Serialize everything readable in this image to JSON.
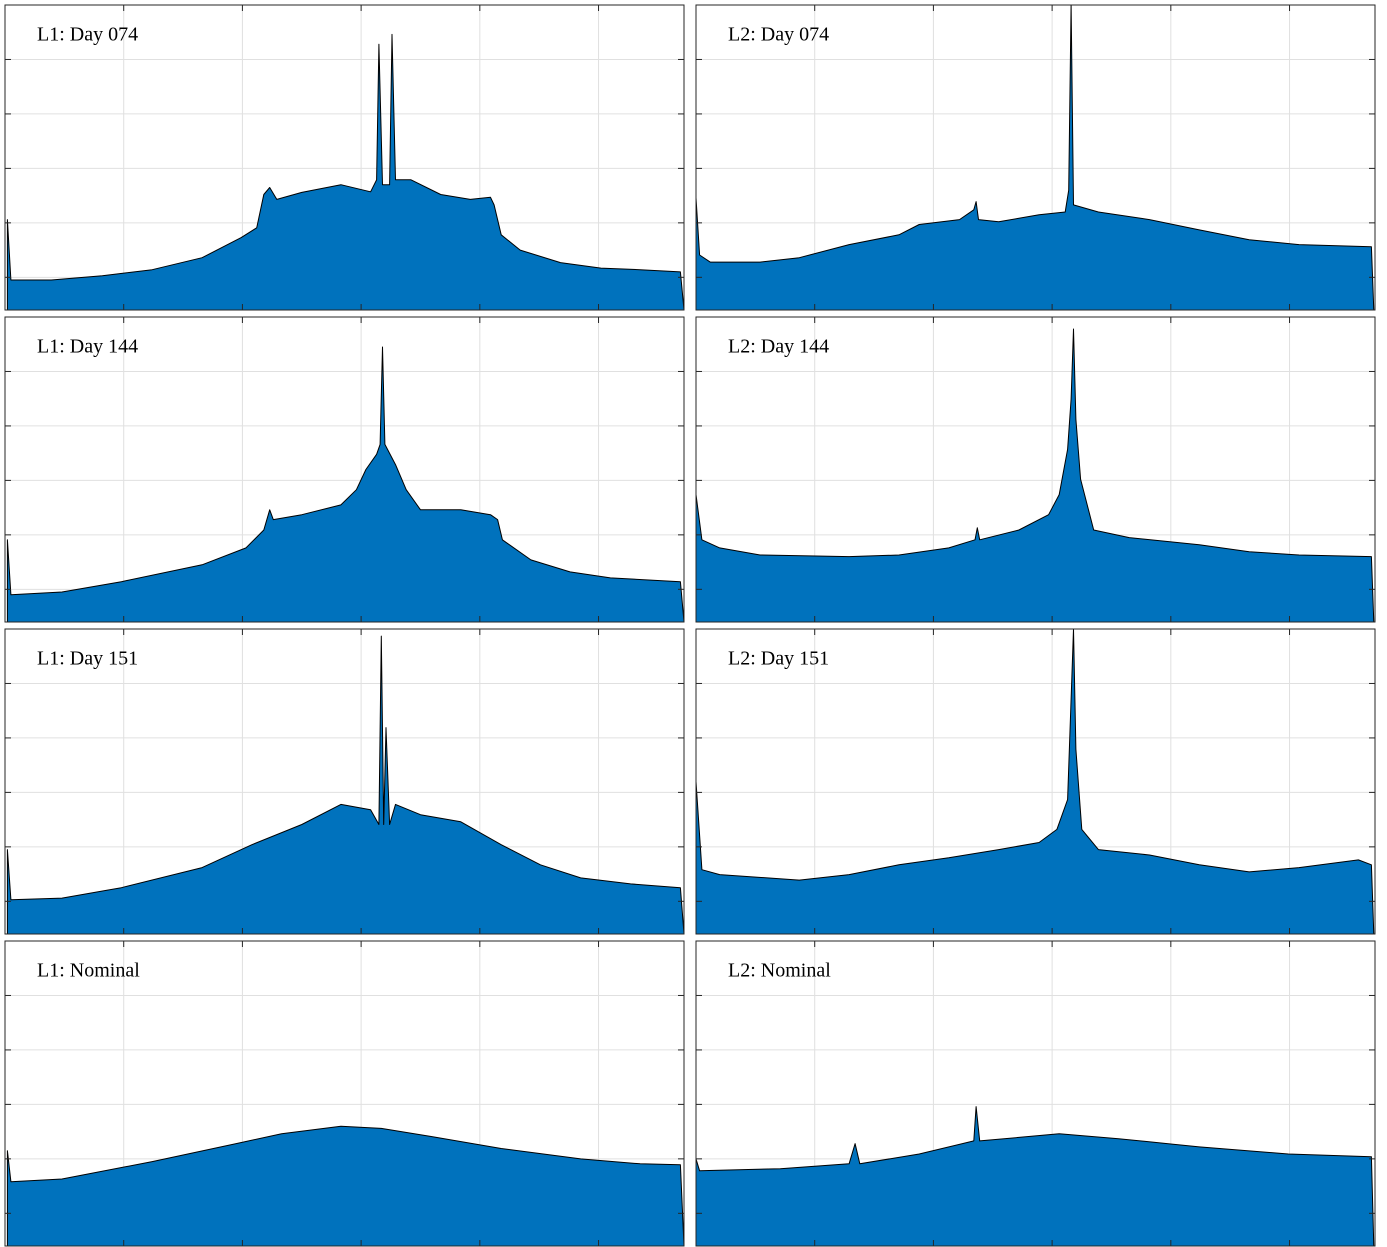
{
  "chart_data": [
    {
      "type": "area",
      "title": "L1: Day 074",
      "color": "#0072bd",
      "xlim": [
        -3,
        2.72
      ],
      "ylim": [
        0,
        5.6
      ],
      "xticks": [
        -2,
        -1,
        0,
        1,
        2
      ],
      "yticks": [
        0.6,
        1.6,
        2.6,
        3.6,
        4.6
      ],
      "grid": true,
      "x": [
        -2.98,
        -2.95,
        -2.61,
        -2.18,
        -1.76,
        -1.34,
        -1.01,
        -0.88,
        -0.82,
        -0.77,
        -0.71,
        -0.5,
        -0.17,
        0.08,
        0.13,
        0.15,
        0.18,
        0.24,
        0.26,
        0.29,
        0.42,
        0.67,
        0.92,
        1.09,
        1.12,
        1.18,
        1.34,
        1.68,
        2.02,
        2.35,
        2.69,
        2.72
      ],
      "values": [
        1.66,
        0.55,
        0.55,
        0.63,
        0.74,
        0.96,
        1.33,
        1.51,
        2.12,
        2.25,
        2.03,
        2.16,
        2.3,
        2.17,
        2.39,
        4.88,
        2.3,
        2.3,
        5.06,
        2.39,
        2.39,
        2.12,
        2.03,
        2.07,
        1.93,
        1.38,
        1.1,
        0.87,
        0.77,
        0.74,
        0.7,
        0
      ]
    },
    {
      "type": "area",
      "title": "L2: Day 074",
      "color": "#0072bd",
      "xlim": [
        -3,
        2.72
      ],
      "ylim": [
        0,
        5.6
      ],
      "xticks": [
        -2,
        -1,
        0,
        1,
        2
      ],
      "yticks": [
        0.6,
        1.6,
        2.6,
        3.6,
        4.6
      ],
      "grid": true,
      "x": [
        -3.0,
        -2.97,
        -2.88,
        -2.46,
        -2.13,
        -1.71,
        -1.29,
        -1.12,
        -0.78,
        -0.66,
        -0.64,
        -0.62,
        -0.45,
        -0.11,
        0.11,
        0.14,
        0.16,
        0.18,
        0.39,
        0.82,
        1.24,
        1.66,
        2.08,
        2.69,
        2.71
      ],
      "values": [
        2.06,
        1.01,
        0.88,
        0.88,
        0.96,
        1.2,
        1.38,
        1.57,
        1.66,
        1.84,
        1.99,
        1.66,
        1.62,
        1.75,
        1.8,
        2.2,
        5.62,
        1.93,
        1.8,
        1.66,
        1.47,
        1.29,
        1.2,
        1.16,
        0
      ]
    },
    {
      "type": "area",
      "title": "L1: Day 144",
      "color": "#0072bd",
      "xlim": [
        -3,
        2.72
      ],
      "ylim": [
        0,
        5.6
      ],
      "xticks": [
        -2,
        -1,
        0,
        1,
        2
      ],
      "yticks": [
        0.6,
        1.6,
        2.6,
        3.6,
        4.6
      ],
      "grid": true,
      "x": [
        -2.98,
        -2.95,
        -2.52,
        -2.02,
        -1.34,
        -0.97,
        -0.82,
        -0.77,
        -0.74,
        -0.5,
        -0.17,
        -0.04,
        0.04,
        0.13,
        0.16,
        0.18,
        0.2,
        0.29,
        0.38,
        0.5,
        0.84,
        1.09,
        1.15,
        1.19,
        1.43,
        1.76,
        2.1,
        2.69,
        2.72
      ],
      "values": [
        1.51,
        0.5,
        0.55,
        0.74,
        1.05,
        1.36,
        1.69,
        2.06,
        1.88,
        1.97,
        2.15,
        2.43,
        2.8,
        3.08,
        3.26,
        5.05,
        3.26,
        2.89,
        2.43,
        2.06,
        2.06,
        1.97,
        1.88,
        1.51,
        1.14,
        0.92,
        0.81,
        0.74,
        0
      ]
    },
    {
      "type": "area",
      "title": "L2: Day 144",
      "color": "#0072bd",
      "xlim": [
        -3,
        2.72
      ],
      "ylim": [
        0,
        5.6
      ],
      "xticks": [
        -2,
        -1,
        0,
        1,
        2
      ],
      "yticks": [
        0.6,
        1.6,
        2.6,
        3.6,
        4.6
      ],
      "grid": true,
      "x": [
        -3.0,
        -2.95,
        -2.8,
        -2.46,
        -1.71,
        -1.29,
        -0.87,
        -0.65,
        -0.63,
        -0.61,
        -0.28,
        -0.03,
        0.06,
        0.13,
        0.16,
        0.18,
        0.2,
        0.24,
        0.35,
        0.65,
        1.24,
        1.66,
        2.08,
        2.69,
        2.71
      ],
      "values": [
        2.34,
        1.51,
        1.36,
        1.23,
        1.2,
        1.23,
        1.36,
        1.51,
        1.73,
        1.51,
        1.69,
        1.97,
        2.34,
        3.17,
        4.09,
        5.38,
        3.72,
        2.62,
        1.69,
        1.55,
        1.42,
        1.29,
        1.23,
        1.2,
        0
      ]
    },
    {
      "type": "area",
      "title": "L1: Day 151",
      "color": "#0072bd",
      "xlim": [
        -3,
        2.72
      ],
      "ylim": [
        0,
        5.6
      ],
      "xticks": [
        -2,
        -1,
        0,
        1,
        2
      ],
      "yticks": [
        0.6,
        1.6,
        2.6,
        3.6,
        4.6
      ],
      "grid": true,
      "x": [
        -2.98,
        -2.95,
        -2.52,
        -2.02,
        -1.34,
        -0.92,
        -0.5,
        -0.17,
        0.08,
        0.15,
        0.17,
        0.19,
        0.21,
        0.24,
        0.29,
        0.5,
        0.84,
        1.18,
        1.51,
        1.85,
        2.27,
        2.69,
        2.72
      ],
      "values": [
        1.55,
        0.63,
        0.66,
        0.85,
        1.22,
        1.64,
        2.01,
        2.38,
        2.28,
        2.01,
        5.47,
        2.01,
        3.79,
        2.01,
        2.38,
        2.19,
        2.06,
        1.64,
        1.27,
        1.03,
        0.92,
        0.85,
        0
      ]
    },
    {
      "type": "area",
      "title": "L2: Day 151",
      "color": "#0072bd",
      "xlim": [
        -3,
        2.72
      ],
      "ylim": [
        0,
        5.6
      ],
      "xticks": [
        -2,
        -1,
        0,
        1,
        2
      ],
      "yticks": [
        0.6,
        1.6,
        2.6,
        3.6,
        4.6
      ],
      "grid": true,
      "x": [
        -3.0,
        -2.95,
        -2.8,
        -2.13,
        -1.71,
        -1.29,
        -0.87,
        -0.45,
        -0.11,
        0.04,
        0.13,
        0.16,
        0.18,
        0.2,
        0.25,
        0.39,
        0.82,
        1.24,
        1.66,
        2.08,
        2.58,
        2.69,
        2.71
      ],
      "values": [
        2.8,
        1.18,
        1.09,
        0.99,
        1.09,
        1.27,
        1.4,
        1.55,
        1.68,
        1.92,
        2.47,
        4.31,
        5.6,
        3.39,
        1.92,
        1.55,
        1.45,
        1.27,
        1.14,
        1.22,
        1.36,
        1.27,
        0
      ]
    },
    {
      "type": "area",
      "title": "L1: Nominal",
      "color": "#0072bd",
      "xlim": [
        -3,
        2.72
      ],
      "ylim": [
        0,
        5.6
      ],
      "xticks": [
        -2,
        -1,
        0,
        1,
        2
      ],
      "yticks": [
        0.6,
        1.6,
        2.6,
        3.6,
        4.6
      ],
      "grid": true,
      "x": [
        -2.98,
        -2.95,
        -2.52,
        -1.76,
        -1.18,
        -0.67,
        -0.17,
        0.17,
        0.59,
        1.18,
        1.85,
        2.35,
        2.69,
        2.72
      ],
      "values": [
        1.75,
        1.18,
        1.23,
        1.55,
        1.82,
        2.06,
        2.2,
        2.16,
        2.01,
        1.79,
        1.6,
        1.51,
        1.49,
        0
      ]
    },
    {
      "type": "area",
      "title": "L2: Nominal",
      "color": "#0072bd",
      "xlim": [
        -3,
        2.72
      ],
      "ylim": [
        0,
        5.6
      ],
      "xticks": [
        -2,
        -1,
        0,
        1,
        2
      ],
      "yticks": [
        0.6,
        1.6,
        2.6,
        3.6,
        4.6
      ],
      "grid": true,
      "x": [
        -3.0,
        -2.97,
        -2.29,
        -1.71,
        -1.66,
        -1.62,
        -1.12,
        -0.66,
        -0.64,
        -0.61,
        0.06,
        0.56,
        1.24,
        1.99,
        2.69,
        2.71
      ],
      "values": [
        1.6,
        1.38,
        1.42,
        1.51,
        1.88,
        1.51,
        1.69,
        1.93,
        2.56,
        1.93,
        2.06,
        1.97,
        1.82,
        1.69,
        1.64,
        0
      ]
    }
  ]
}
